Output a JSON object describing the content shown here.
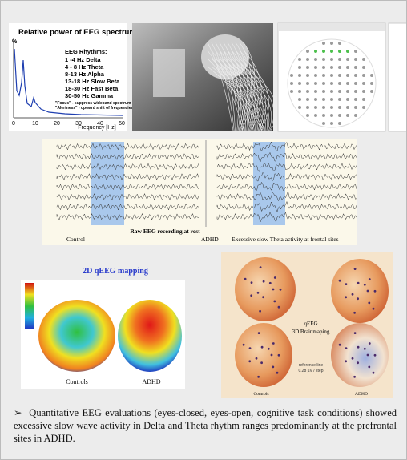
{
  "spectrum": {
    "title": "Relative power of  EEG spectrum",
    "y_label": "%",
    "rhythms_heading": "EEG Rhythms:",
    "rhythms": [
      "1 -4 Hz  Delta",
      "4 - 8 Hz  Theta",
      "8-13 Hz  Alpha",
      "13-18 Hz  Slow Beta",
      "18-30 Hz  Fast Beta",
      "30-50 Hz  Gamma"
    ],
    "notes": [
      "\"Focus\" - suppress wideband spectrum",
      "\"Alertness\" - upward shift of frequencies"
    ],
    "x_ticks": [
      "0",
      "10",
      "20",
      "30",
      "40",
      "50"
    ],
    "x_label": "Frequency [Hz]"
  },
  "raw_eeg": {
    "title": "Raw EEG recording at rest",
    "control_label": "Control",
    "adhd_label": "ADHD",
    "caption": "Excessive slow Theta activity at frontal sites"
  },
  "mapping_2d": {
    "title": "2D qEEG mapping",
    "labels": [
      "Controls",
      "ADHD"
    ]
  },
  "mapping_3d": {
    "title_lines": [
      "qEEG",
      "3D Brainmaping"
    ],
    "legend_lines": [
      "reference line",
      "0.28 µV / step"
    ],
    "labels": [
      "Controls",
      "ADHD"
    ]
  },
  "summary": {
    "bullet": "➢",
    "text": "Quantitative EEG evaluations (eyes-closed, eyes-open, cognitive task conditions) showed excessive slow wave activity in Delta and Theta rhythm ranges predominantly at the prefrontal sites in ADHD."
  }
}
